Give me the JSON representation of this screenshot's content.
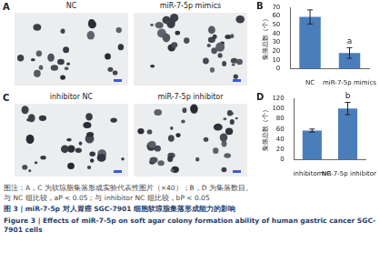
{
  "photo_panels": [
    {
      "label": "A",
      "images": [
        "NC",
        "miR-7-5p mimics"
      ]
    },
    {
      "label": "C",
      "images": [
        "inhibitor NC",
        "miR-7-5p inhibitor"
      ]
    }
  ],
  "chart_data": [
    {
      "panel": "B",
      "type": "bar",
      "categories": [
        "NC",
        "miR-7-5p mimics"
      ],
      "values": [
        59,
        18
      ],
      "error": [
        8,
        6
      ],
      "color": "#4a7ebb",
      "y_label": "集落总数（个）",
      "ylim": [
        0,
        70
      ],
      "yticks": [
        0,
        10,
        20,
        30,
        40,
        50,
        60,
        70
      ],
      "grid": false,
      "annotations": [
        {
          "category": "miR-7-5p mimics",
          "text": "a"
        }
      ]
    },
    {
      "panel": "D",
      "type": "bar",
      "categories": [
        "inhibitor NC",
        "miR-7-5p inhibitor"
      ],
      "values": [
        57,
        100
      ],
      "error": [
        3,
        12
      ],
      "color": "#4a7ebb",
      "y_label": "集落总数（个）",
      "ylim": [
        0,
        120
      ],
      "yticks": [
        0,
        20,
        40,
        60,
        80,
        100,
        120
      ],
      "grid": false,
      "annotations": [
        {
          "category": "miR-7-5p inhibitor",
          "text": "b"
        }
      ]
    }
  ],
  "caption": {
    "note": [
      "图注：A，C 为软琼脂集落形成实验代表性图片（×40）；B，D 为集落数目。",
      "与 NC 组比较，aP < 0.05；与 inhibitor NC 组比较，bP < 0.05"
    ],
    "title_cn": "图 3 | miR-7-5p 对人胃癌 SGC-7901 细胞软琼脂集落形成能力的影响",
    "title_en": "Figure 3 | Effects of miR-7-5p on soft agar colony formation ability of human gastric cancer SGC-7901 cells"
  }
}
